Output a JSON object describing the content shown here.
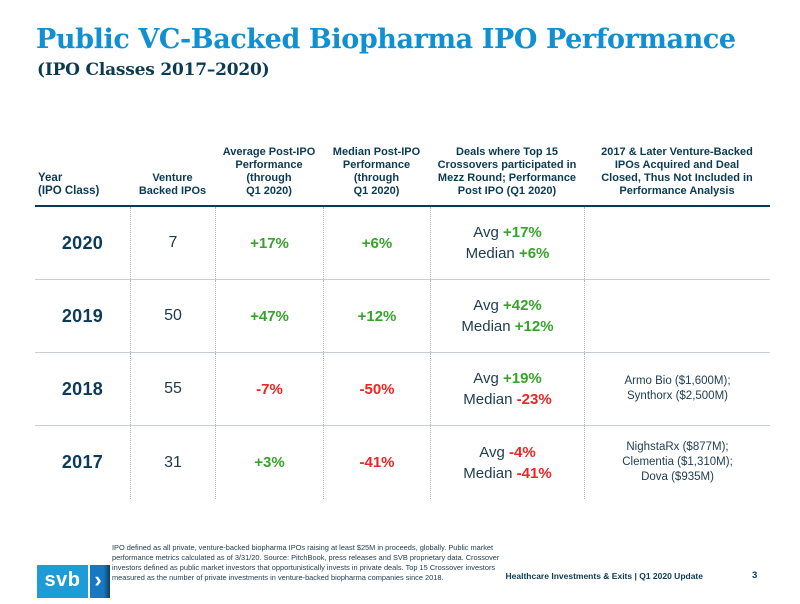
{
  "title": "Public VC-Backed Biopharma IPO Performance",
  "subtitle": "(IPO Classes 2017–2020)",
  "colors": {
    "title_blue": "#0e90d2",
    "navy": "#0b3a53",
    "positive_green": "#37a32c",
    "negative_red": "#ee2424",
    "logo_light_blue": "#1e9cd7",
    "logo_mid_blue": "#1778c2"
  },
  "table": {
    "columns": [
      {
        "id": "year",
        "lines": [
          "Year",
          "(IPO Class)"
        ]
      },
      {
        "id": "ipos",
        "lines": [
          "Venture",
          "Backed IPOs"
        ]
      },
      {
        "id": "avg",
        "lines": [
          "Average Post-IPO",
          "Performance",
          "(through",
          "Q1 2020)"
        ]
      },
      {
        "id": "median",
        "lines": [
          "Median Post-IPO",
          "Performance",
          "(through",
          "Q1 2020)"
        ]
      },
      {
        "id": "crossover",
        "lines": [
          "Deals where Top 15",
          "Crossovers participated in",
          "Mezz Round; Performance",
          "Post IPO (Q1 2020)"
        ]
      },
      {
        "id": "acquired",
        "lines": [
          "2017 & Later Venture-Backed",
          "IPOs Acquired and Deal",
          "Closed, Thus Not Included in",
          "Performance Analysis"
        ]
      }
    ],
    "rows": [
      {
        "year": "2020",
        "ipos": "7",
        "avg": {
          "value": "+17%",
          "sentiment": "pos"
        },
        "median": {
          "value": "+6%",
          "sentiment": "pos"
        },
        "crossover": [
          {
            "label": "Avg",
            "value": "+17%",
            "sentiment": "pos"
          },
          {
            "label": "Median",
            "value": "+6%",
            "sentiment": "pos"
          }
        ],
        "acquired": []
      },
      {
        "year": "2019",
        "ipos": "50",
        "avg": {
          "value": "+47%",
          "sentiment": "pos"
        },
        "median": {
          "value": "+12%",
          "sentiment": "pos"
        },
        "crossover": [
          {
            "label": "Avg",
            "value": "+42%",
            "sentiment": "pos"
          },
          {
            "label": "Median",
            "value": "+12%",
            "sentiment": "pos"
          }
        ],
        "acquired": []
      },
      {
        "year": "2018",
        "ipos": "55",
        "avg": {
          "value": "-7%",
          "sentiment": "neg"
        },
        "median": {
          "value": "-50%",
          "sentiment": "neg"
        },
        "crossover": [
          {
            "label": "Avg",
            "value": "+19%",
            "sentiment": "pos"
          },
          {
            "label": "Median",
            "value": "-23%",
            "sentiment": "neg"
          }
        ],
        "acquired": [
          "Armo Bio ($1,600M);",
          "Synthorx ($2,500M)"
        ]
      },
      {
        "year": "2017",
        "ipos": "31",
        "avg": {
          "value": "+3%",
          "sentiment": "pos"
        },
        "median": {
          "value": "-41%",
          "sentiment": "neg"
        },
        "crossover": [
          {
            "label": "Avg",
            "value": "-4%",
            "sentiment": "neg"
          },
          {
            "label": "Median",
            "value": "-41%",
            "sentiment": "neg"
          }
        ],
        "acquired": [
          "NighstaRx ($877M);",
          "Clementia ($1,310M);",
          "Dova ($935M)"
        ]
      }
    ]
  },
  "footnote": "IPO defined as all private, venture-backed biopharma IPOs raising at least $25M in proceeds, globally. Public market performance metrics calculated as of 3/31/20. Source: PitchBook, press releases and SVB proprietary data.  Crossover investors defined as public market investors that opportunistically invests in private deals.  Top 15 Crossover investors measured as the number of private investments in venture-backed biopharma companies since 2018.",
  "footer": {
    "logo_text": "svb",
    "logo_chevron": "›",
    "label": "Healthcare Investments & Exits | Q1 2020 Update",
    "page": "3"
  }
}
